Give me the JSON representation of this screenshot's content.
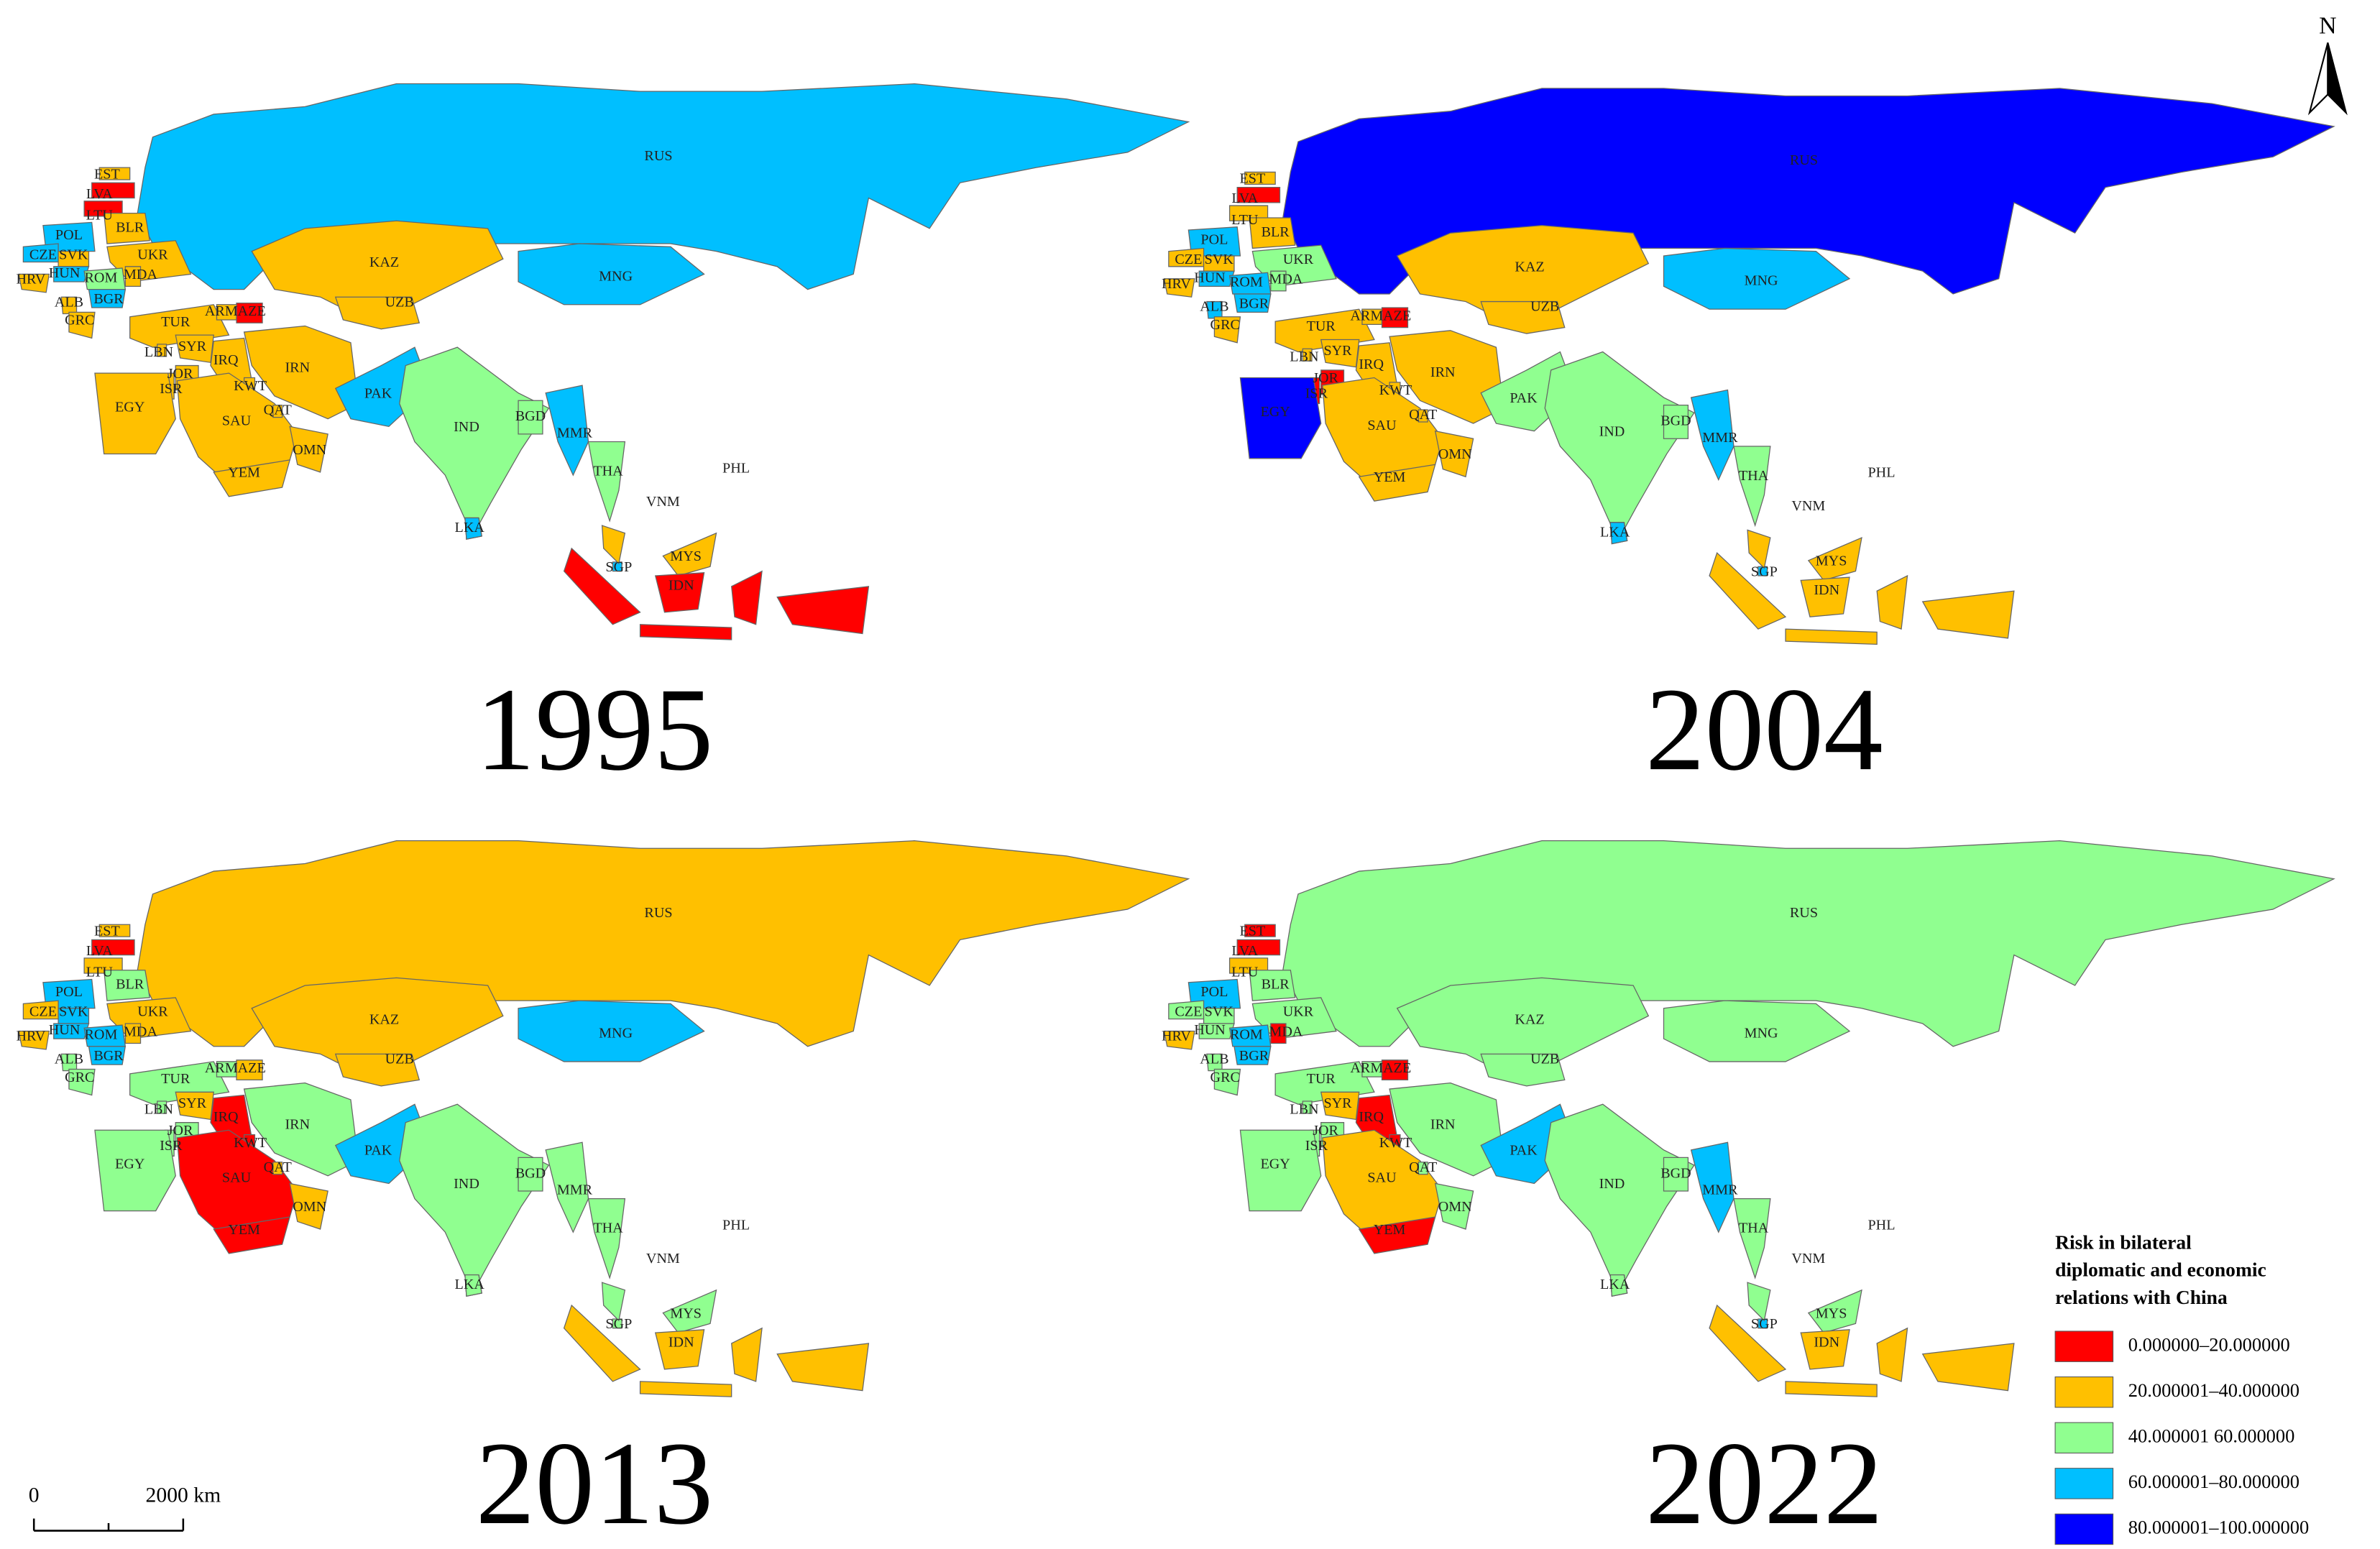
{
  "maps": [
    {
      "year": "1995",
      "countries": [
        {
          "label": "RUS",
          "color": "#00bfff"
        },
        {
          "label": "EST",
          "color": "#ffc000"
        },
        {
          "label": "LVA",
          "color": "#ff0000"
        },
        {
          "label": "LTU",
          "color": "#ff0000"
        },
        {
          "label": "BLR",
          "color": "#ffc000"
        },
        {
          "label": "POL",
          "color": "#00bfff"
        },
        {
          "label": "CZE",
          "color": "#00bfff"
        },
        {
          "label": "SVK",
          "color": "#ffc000"
        },
        {
          "label": "HUN",
          "color": "#00bfff"
        },
        {
          "label": "UKR",
          "color": "#ffc000"
        },
        {
          "label": "MDA",
          "color": "#ffc000"
        },
        {
          "label": "ROM",
          "color": "#90ff90"
        },
        {
          "label": "HRV",
          "color": "#ffc000"
        },
        {
          "label": "ALB",
          "color": "#ffc000"
        },
        {
          "label": "BGR",
          "color": "#00bfff"
        },
        {
          "label": "GRC",
          "color": "#ffc000"
        },
        {
          "label": "TUR",
          "color": "#ffc000"
        },
        {
          "label": "ARM",
          "color": "#ffc000"
        },
        {
          "label": "AZE",
          "color": "#ff0000"
        },
        {
          "label": "KAZ",
          "color": "#ffc000"
        },
        {
          "label": "UZB",
          "color": "#ffc000"
        },
        {
          "label": "MNG",
          "color": "#00bfff"
        },
        {
          "label": "LBN",
          "color": "#ffc000"
        },
        {
          "label": "SYR",
          "color": "#ffc000"
        },
        {
          "label": "IRQ",
          "color": "#ffc000"
        },
        {
          "label": "IRN",
          "color": "#ffc000"
        },
        {
          "label": "JOR",
          "color": "#ffc000"
        },
        {
          "label": "ISR",
          "color": "#ffc000"
        },
        {
          "label": "KWT",
          "color": "#ffc000"
        },
        {
          "label": "EGY",
          "color": "#ffc000"
        },
        {
          "label": "SAU",
          "color": "#ffc000"
        },
        {
          "label": "QAT",
          "color": "#ffc000"
        },
        {
          "label": "OMN",
          "color": "#ffc000"
        },
        {
          "label": "YEM",
          "color": "#ffc000"
        },
        {
          "label": "PAK",
          "color": "#00bfff"
        },
        {
          "label": "IND",
          "color": "#90ff90"
        },
        {
          "label": "BGD",
          "color": "#ffc000"
        },
        {
          "label": "MMR",
          "color": "#90ff90"
        },
        {
          "label": "THA",
          "color": "#00bfff"
        },
        {
          "label": "VNM",
          "color": "#90ff90"
        },
        {
          "label": "LKA",
          "color": "#90ff90"
        },
        {
          "label": "SGP",
          "color": "#00bfff"
        },
        {
          "label": "MYS",
          "color": "#00bfff"
        },
        {
          "label": "IDN",
          "color": "#ffc000"
        },
        {
          "label": "PHL",
          "color": "#ff0000"
        }
      ]
    },
    {
      "year": "2004",
      "countries": [
        {
          "label": "RUS",
          "color": "#0000ff"
        },
        {
          "label": "EST",
          "color": "#ffc000"
        },
        {
          "label": "LVA",
          "color": "#ff0000"
        },
        {
          "label": "LTU",
          "color": "#ffc000"
        },
        {
          "label": "BLR",
          "color": "#ffc000"
        },
        {
          "label": "POL",
          "color": "#00bfff"
        },
        {
          "label": "CZE",
          "color": "#ffc000"
        },
        {
          "label": "SVK",
          "color": "#ffc000"
        },
        {
          "label": "HUN",
          "color": "#00bfff"
        },
        {
          "label": "UKR",
          "color": "#90ff90"
        },
        {
          "label": "MDA",
          "color": "#90ff90"
        },
        {
          "label": "ROM",
          "color": "#00bfff"
        },
        {
          "label": "HRV",
          "color": "#ffc000"
        },
        {
          "label": "ALB",
          "color": "#00bfff"
        },
        {
          "label": "BGR",
          "color": "#00bfff"
        },
        {
          "label": "GRC",
          "color": "#ffc000"
        },
        {
          "label": "TUR",
          "color": "#ffc000"
        },
        {
          "label": "ARM",
          "color": "#ffc000"
        },
        {
          "label": "AZE",
          "color": "#ff0000"
        },
        {
          "label": "KAZ",
          "color": "#ffc000"
        },
        {
          "label": "UZB",
          "color": "#ffc000"
        },
        {
          "label": "MNG",
          "color": "#00bfff"
        },
        {
          "label": "LBN",
          "color": "#ffc000"
        },
        {
          "label": "SYR",
          "color": "#ffc000"
        },
        {
          "label": "IRQ",
          "color": "#ffc000"
        },
        {
          "label": "IRN",
          "color": "#ffc000"
        },
        {
          "label": "JOR",
          "color": "#ff0000"
        },
        {
          "label": "ISR",
          "color": "#ff0000"
        },
        {
          "label": "KWT",
          "color": "#ffc000"
        },
        {
          "label": "EGY",
          "color": "#0000ff"
        },
        {
          "label": "SAU",
          "color": "#ffc000"
        },
        {
          "label": "QAT",
          "color": "#ffc000"
        },
        {
          "label": "OMN",
          "color": "#ffc000"
        },
        {
          "label": "YEM",
          "color": "#ffc000"
        },
        {
          "label": "PAK",
          "color": "#90ff90"
        },
        {
          "label": "IND",
          "color": "#90ff90"
        },
        {
          "label": "BGD",
          "color": "#ffc000"
        },
        {
          "label": "MMR",
          "color": "#90ff90"
        },
        {
          "label": "THA",
          "color": "#00bfff"
        },
        {
          "label": "VNM",
          "color": "#90ff90"
        },
        {
          "label": "LKA",
          "color": "#90ff90"
        },
        {
          "label": "SGP",
          "color": "#00bfff"
        },
        {
          "label": "MYS",
          "color": "#00bfff"
        },
        {
          "label": "IDN",
          "color": "#ffc000"
        },
        {
          "label": "PHL",
          "color": "#ffc000"
        }
      ]
    },
    {
      "year": "2013",
      "countries": [
        {
          "label": "RUS",
          "color": "#ffc000"
        },
        {
          "label": "EST",
          "color": "#ffc000"
        },
        {
          "label": "LVA",
          "color": "#ff0000"
        },
        {
          "label": "LTU",
          "color": "#ffc000"
        },
        {
          "label": "BLR",
          "color": "#90ff90"
        },
        {
          "label": "POL",
          "color": "#00bfff"
        },
        {
          "label": "CZE",
          "color": "#ffc000"
        },
        {
          "label": "SVK",
          "color": "#00bfff"
        },
        {
          "label": "HUN",
          "color": "#00bfff"
        },
        {
          "label": "UKR",
          "color": "#ffc000"
        },
        {
          "label": "MDA",
          "color": "#ffc000"
        },
        {
          "label": "ROM",
          "color": "#00bfff"
        },
        {
          "label": "HRV",
          "color": "#ffc000"
        },
        {
          "label": "ALB",
          "color": "#90ff90"
        },
        {
          "label": "BGR",
          "color": "#00bfff"
        },
        {
          "label": "GRC",
          "color": "#90ff90"
        },
        {
          "label": "TUR",
          "color": "#90ff90"
        },
        {
          "label": "ARM",
          "color": "#90ff90"
        },
        {
          "label": "AZE",
          "color": "#ffc000"
        },
        {
          "label": "KAZ",
          "color": "#ffc000"
        },
        {
          "label": "UZB",
          "color": "#ffc000"
        },
        {
          "label": "MNG",
          "color": "#00bfff"
        },
        {
          "label": "LBN",
          "color": "#90ff90"
        },
        {
          "label": "SYR",
          "color": "#ffc000"
        },
        {
          "label": "IRQ",
          "color": "#ff0000"
        },
        {
          "label": "IRN",
          "color": "#90ff90"
        },
        {
          "label": "JOR",
          "color": "#90ff90"
        },
        {
          "label": "ISR",
          "color": "#90ff90"
        },
        {
          "label": "KWT",
          "color": "#ff0000"
        },
        {
          "label": "EGY",
          "color": "#90ff90"
        },
        {
          "label": "SAU",
          "color": "#ff0000"
        },
        {
          "label": "QAT",
          "color": "#ffc000"
        },
        {
          "label": "OMN",
          "color": "#ffc000"
        },
        {
          "label": "YEM",
          "color": "#ff0000"
        },
        {
          "label": "PAK",
          "color": "#00bfff"
        },
        {
          "label": "IND",
          "color": "#90ff90"
        },
        {
          "label": "BGD",
          "color": "#90ff90"
        },
        {
          "label": "MMR",
          "color": "#90ff90"
        },
        {
          "label": "THA",
          "color": "#90ff90"
        },
        {
          "label": "VNM",
          "color": "#90ff90"
        },
        {
          "label": "LKA",
          "color": "#90ff90"
        },
        {
          "label": "SGP",
          "color": "#90ff90"
        },
        {
          "label": "MYS",
          "color": "#90ff90"
        },
        {
          "label": "IDN",
          "color": "#90ff90"
        },
        {
          "label": "PHL",
          "color": "#ffc000"
        }
      ]
    },
    {
      "year": "2022",
      "countries": [
        {
          "label": "RUS",
          "color": "#90ff90"
        },
        {
          "label": "EST",
          "color": "#ff0000"
        },
        {
          "label": "LVA",
          "color": "#ff0000"
        },
        {
          "label": "LTU",
          "color": "#ffc000"
        },
        {
          "label": "BLR",
          "color": "#90ff90"
        },
        {
          "label": "POL",
          "color": "#00bfff"
        },
        {
          "label": "CZE",
          "color": "#90ff90"
        },
        {
          "label": "SVK",
          "color": "#90ff90"
        },
        {
          "label": "HUN",
          "color": "#90ff90"
        },
        {
          "label": "UKR",
          "color": "#90ff90"
        },
        {
          "label": "MDA",
          "color": "#ff0000"
        },
        {
          "label": "ROM",
          "color": "#00bfff"
        },
        {
          "label": "HRV",
          "color": "#ffc000"
        },
        {
          "label": "ALB",
          "color": "#90ff90"
        },
        {
          "label": "BGR",
          "color": "#00bfff"
        },
        {
          "label": "GRC",
          "color": "#90ff90"
        },
        {
          "label": "TUR",
          "color": "#90ff90"
        },
        {
          "label": "ARM",
          "color": "#90ff90"
        },
        {
          "label": "AZE",
          "color": "#ff0000"
        },
        {
          "label": "KAZ",
          "color": "#90ff90"
        },
        {
          "label": "UZB",
          "color": "#90ff90"
        },
        {
          "label": "MNG",
          "color": "#90ff90"
        },
        {
          "label": "LBN",
          "color": "#90ff90"
        },
        {
          "label": "SYR",
          "color": "#ffc000"
        },
        {
          "label": "IRQ",
          "color": "#ff0000"
        },
        {
          "label": "IRN",
          "color": "#90ff90"
        },
        {
          "label": "JOR",
          "color": "#90ff90"
        },
        {
          "label": "ISR",
          "color": "#90ff90"
        },
        {
          "label": "KWT",
          "color": "#ff0000"
        },
        {
          "label": "EGY",
          "color": "#90ff90"
        },
        {
          "label": "SAU",
          "color": "#ffc000"
        },
        {
          "label": "QAT",
          "color": "#90ff90"
        },
        {
          "label": "OMN",
          "color": "#90ff90"
        },
        {
          "label": "YEM",
          "color": "#ff0000"
        },
        {
          "label": "PAK",
          "color": "#00bfff"
        },
        {
          "label": "IND",
          "color": "#90ff90"
        },
        {
          "label": "BGD",
          "color": "#ffc000"
        },
        {
          "label": "MMR",
          "color": "#90ff90"
        },
        {
          "label": "THA",
          "color": "#00bfff"
        },
        {
          "label": "VNM",
          "color": "#90ff90"
        },
        {
          "label": "LKA",
          "color": "#90ff90"
        },
        {
          "label": "SGP",
          "color": "#90ff90"
        },
        {
          "label": "MYS",
          "color": "#00bfff"
        },
        {
          "label": "IDN",
          "color": "#90ff90"
        },
        {
          "label": "PHL",
          "color": "#ffc000"
        }
      ]
    }
  ],
  "legend": {
    "title_lines": [
      "Risk in bilateral",
      "diplomatic and economic",
      "relations with China"
    ],
    "items": [
      {
        "label": "0.000000–20.000000",
        "color": "#ff0000"
      },
      {
        "label": "20.000001–40.000000",
        "color": "#ffc000"
      },
      {
        "label": "40.000001 60.000000",
        "color": "#90ff90"
      },
      {
        "label": "60.000001–80.000000",
        "color": "#00bfff"
      },
      {
        "label": "80.000001–100.000000",
        "color": "#0000ff"
      }
    ]
  },
  "scale_bar": {
    "start": "0",
    "end": "2000 km"
  },
  "north": "N"
}
